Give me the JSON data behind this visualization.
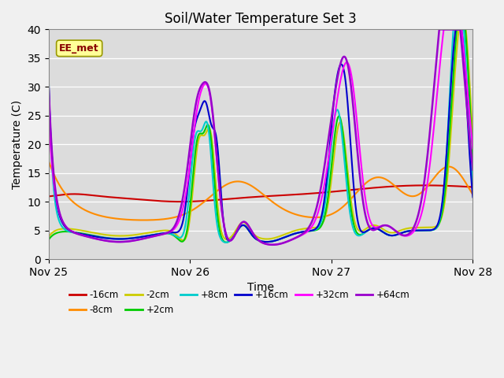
{
  "title": "Soil/Water Temperature Set 3",
  "ylabel": "Temperature (C)",
  "xlabel": "Time",
  "watermark": "EE_met",
  "xlim": [
    0,
    72
  ],
  "ylim": [
    0,
    40
  ],
  "yticks": [
    0,
    5,
    10,
    15,
    20,
    25,
    30,
    35,
    40
  ],
  "xtick_positions": [
    0,
    24,
    48,
    72
  ],
  "xtick_labels": [
    "Nov 25",
    "Nov 26",
    "Nov 27",
    "Nov 28"
  ],
  "background_color": "#dcdcdc",
  "fig_color": "#f0f0f0",
  "series_order": [
    "-16cm",
    "-8cm",
    "-2cm",
    "+2cm",
    "+8cm",
    "+16cm",
    "+32cm",
    "+64cm"
  ],
  "series": {
    "-16cm": {
      "color": "#cc0000",
      "lw": 1.5
    },
    "-8cm": {
      "color": "#ff8c00",
      "lw": 1.5
    },
    "-2cm": {
      "color": "#cccc00",
      "lw": 1.5
    },
    "+2cm": {
      "color": "#00cc00",
      "lw": 1.5
    },
    "+8cm": {
      "color": "#00cccc",
      "lw": 1.5
    },
    "+16cm": {
      "color": "#0000cc",
      "lw": 1.5
    },
    "+32cm": {
      "color": "#ff00ff",
      "lw": 1.5
    },
    "+64cm": {
      "color": "#9900cc",
      "lw": 1.8
    }
  },
  "legend_order": [
    "-16cm",
    "-8cm",
    "-2cm",
    "+2cm",
    "+8cm",
    "+16cm",
    "+32cm",
    "+64cm"
  ]
}
